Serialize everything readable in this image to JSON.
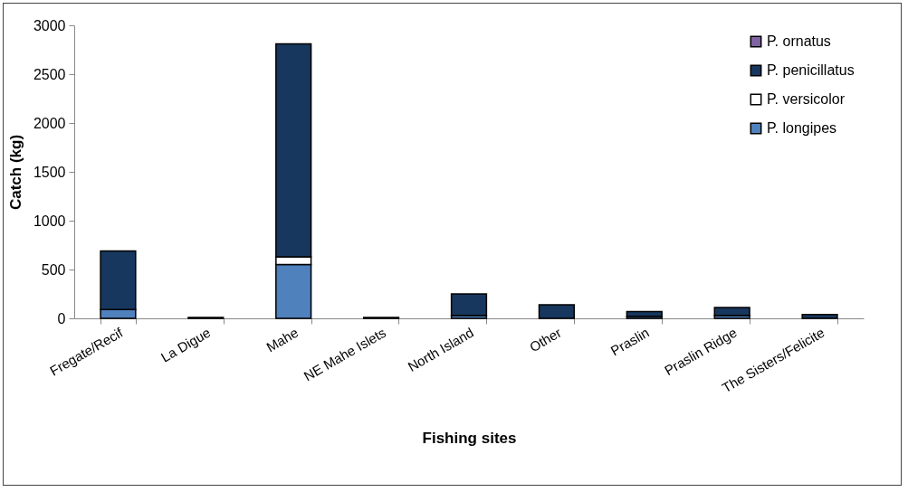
{
  "chart_data": {
    "type": "bar",
    "stacked": true,
    "xlabel": "Fishing sites",
    "ylabel": "Catch (kg)",
    "categories": [
      "Fregate/Recif",
      "La Digue",
      "Mahe",
      "NE Mahe Islets",
      "North Island",
      "Other",
      "Praslin",
      "Praslin Ridge",
      "The Sisters/Felicite"
    ],
    "series": [
      {
        "name": "P. longipes",
        "color": "#4f81bd",
        "values": [
          90,
          null,
          550,
          null,
          30,
          null,
          20,
          30,
          null
        ]
      },
      {
        "name": "P. versicolor",
        "color": "#ffffff",
        "values": [
          null,
          null,
          80,
          null,
          null,
          null,
          null,
          null,
          null
        ]
      },
      {
        "name": "P. penicillatus",
        "color": "#17375e",
        "values": [
          600,
          10,
          2180,
          10,
          220,
          140,
          50,
          80,
          40
        ]
      },
      {
        "name": "P. ornatus",
        "color": "#8064a2",
        "values": [
          null,
          null,
          null,
          null,
          null,
          null,
          null,
          null,
          null
        ]
      }
    ],
    "ylim": [
      0,
      3000
    ],
    "yticks": [
      0,
      500,
      1000,
      1500,
      2000,
      2500,
      3000
    ],
    "grid": false,
    "legend": "top right"
  }
}
